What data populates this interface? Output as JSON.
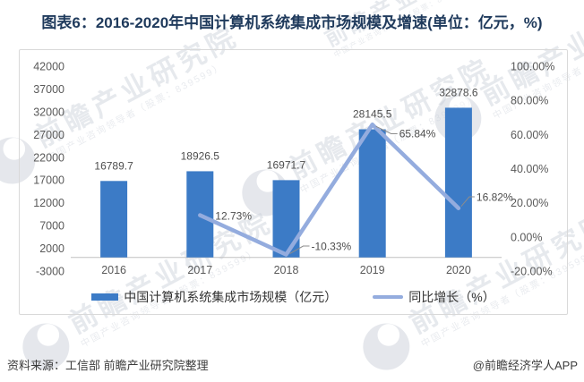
{
  "title": "图表6：2016-2020年中国计算机系统集成市场规模及增速(单位：亿元，%)",
  "chart_data": {
    "type": "bar",
    "subtype": "bar+line combo, dual axis",
    "categories": [
      "2016",
      "2017",
      "2018",
      "2019",
      "2020"
    ],
    "series": [
      {
        "name": "中国计算机系统集成市场规模（亿元）",
        "type": "bar",
        "axis": "left",
        "color": "#3c7bc6",
        "values": [
          16789.7,
          18926.5,
          16971.7,
          28145.5,
          32878.6
        ],
        "labels": [
          "16789.7",
          "18926.5",
          "16971.7",
          "28145.5",
          "32878.6"
        ]
      },
      {
        "name": "同比增长（%）",
        "type": "line",
        "axis": "right",
        "color": "#94acde",
        "values": [
          null,
          12.73,
          -10.33,
          65.84,
          16.82
        ],
        "labels": [
          null,
          "12.73%",
          "-10.33%",
          "65.84%",
          "16.82%"
        ]
      }
    ],
    "left_axis": {
      "min": -3000,
      "max": 42000,
      "step": 5000,
      "ticks": [
        "42000",
        "37000",
        "32000",
        "27000",
        "22000",
        "17000",
        "12000",
        "7000",
        "2000",
        "-3000"
      ]
    },
    "right_axis": {
      "min": -20,
      "max": 100,
      "step": 20,
      "ticks": [
        "100.00%",
        "80.00%",
        "60.00%",
        "40.00%",
        "20.00%",
        "0.00%",
        "-20.00%"
      ]
    },
    "grid": false,
    "legend_position": "bottom"
  },
  "legend": {
    "items": [
      {
        "label": "中国计算机系统集成市场规模（亿元）",
        "swatch": "bar",
        "color": "#3c7bc6"
      },
      {
        "label": "同比增长（%）",
        "swatch": "line",
        "color": "#94acde"
      }
    ]
  },
  "footer": {
    "source": "资料来源：工信部 前瞻产业研究院整理",
    "credit": "@前瞻经济学人APP"
  },
  "watermark": {
    "brand": "前瞻产业研究院",
    "slogan": "中国产业咨询领导者（股票：839599）"
  },
  "colors": {
    "title": "#1f3a5c",
    "axis_text": "#595959",
    "axis_line": "#c0c0c0",
    "data_label": "#4d4d4d",
    "leader_line": "#8c8c8c",
    "chart_border": "#d9d9d9",
    "watermark": "#c9cfd9"
  }
}
